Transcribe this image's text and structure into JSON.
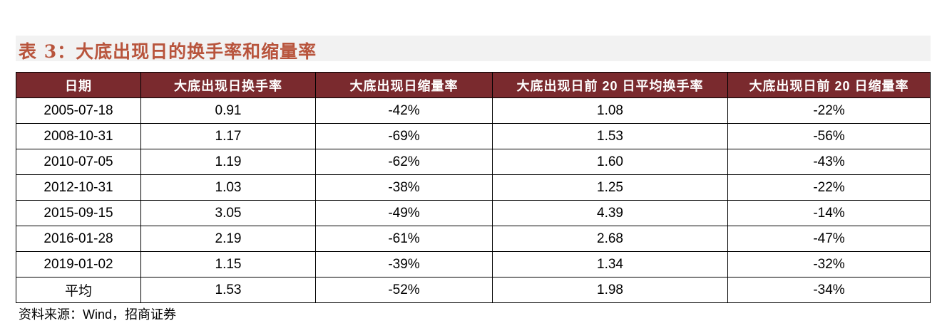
{
  "title": "表 3：大底出现日的换手率和缩量率",
  "table": {
    "header": [
      "日期",
      "大底出现日换手率",
      "大底出现日缩量率",
      "大底出现日前 20 日平均换手率",
      "大底出现日前 20 日缩量率"
    ],
    "rows": [
      [
        "2005-07-18",
        "0.91",
        "-42%",
        "1.08",
        "-22%"
      ],
      [
        "2008-10-31",
        "1.17",
        "-69%",
        "1.53",
        "-56%"
      ],
      [
        "2010-07-05",
        "1.19",
        "-62%",
        "1.60",
        "-43%"
      ],
      [
        "2012-10-31",
        "1.03",
        "-38%",
        "1.25",
        "-22%"
      ],
      [
        "2015-09-15",
        "3.05",
        "-49%",
        "4.39",
        "-14%"
      ],
      [
        "2016-01-28",
        "2.19",
        "-61%",
        "2.68",
        "-47%"
      ],
      [
        "2019-01-02",
        "1.15",
        "-39%",
        "1.34",
        "-32%"
      ],
      [
        "平均",
        "1.53",
        "-52%",
        "1.98",
        "-34%"
      ]
    ]
  },
  "source": "资料来源：Wind，招商证券"
}
